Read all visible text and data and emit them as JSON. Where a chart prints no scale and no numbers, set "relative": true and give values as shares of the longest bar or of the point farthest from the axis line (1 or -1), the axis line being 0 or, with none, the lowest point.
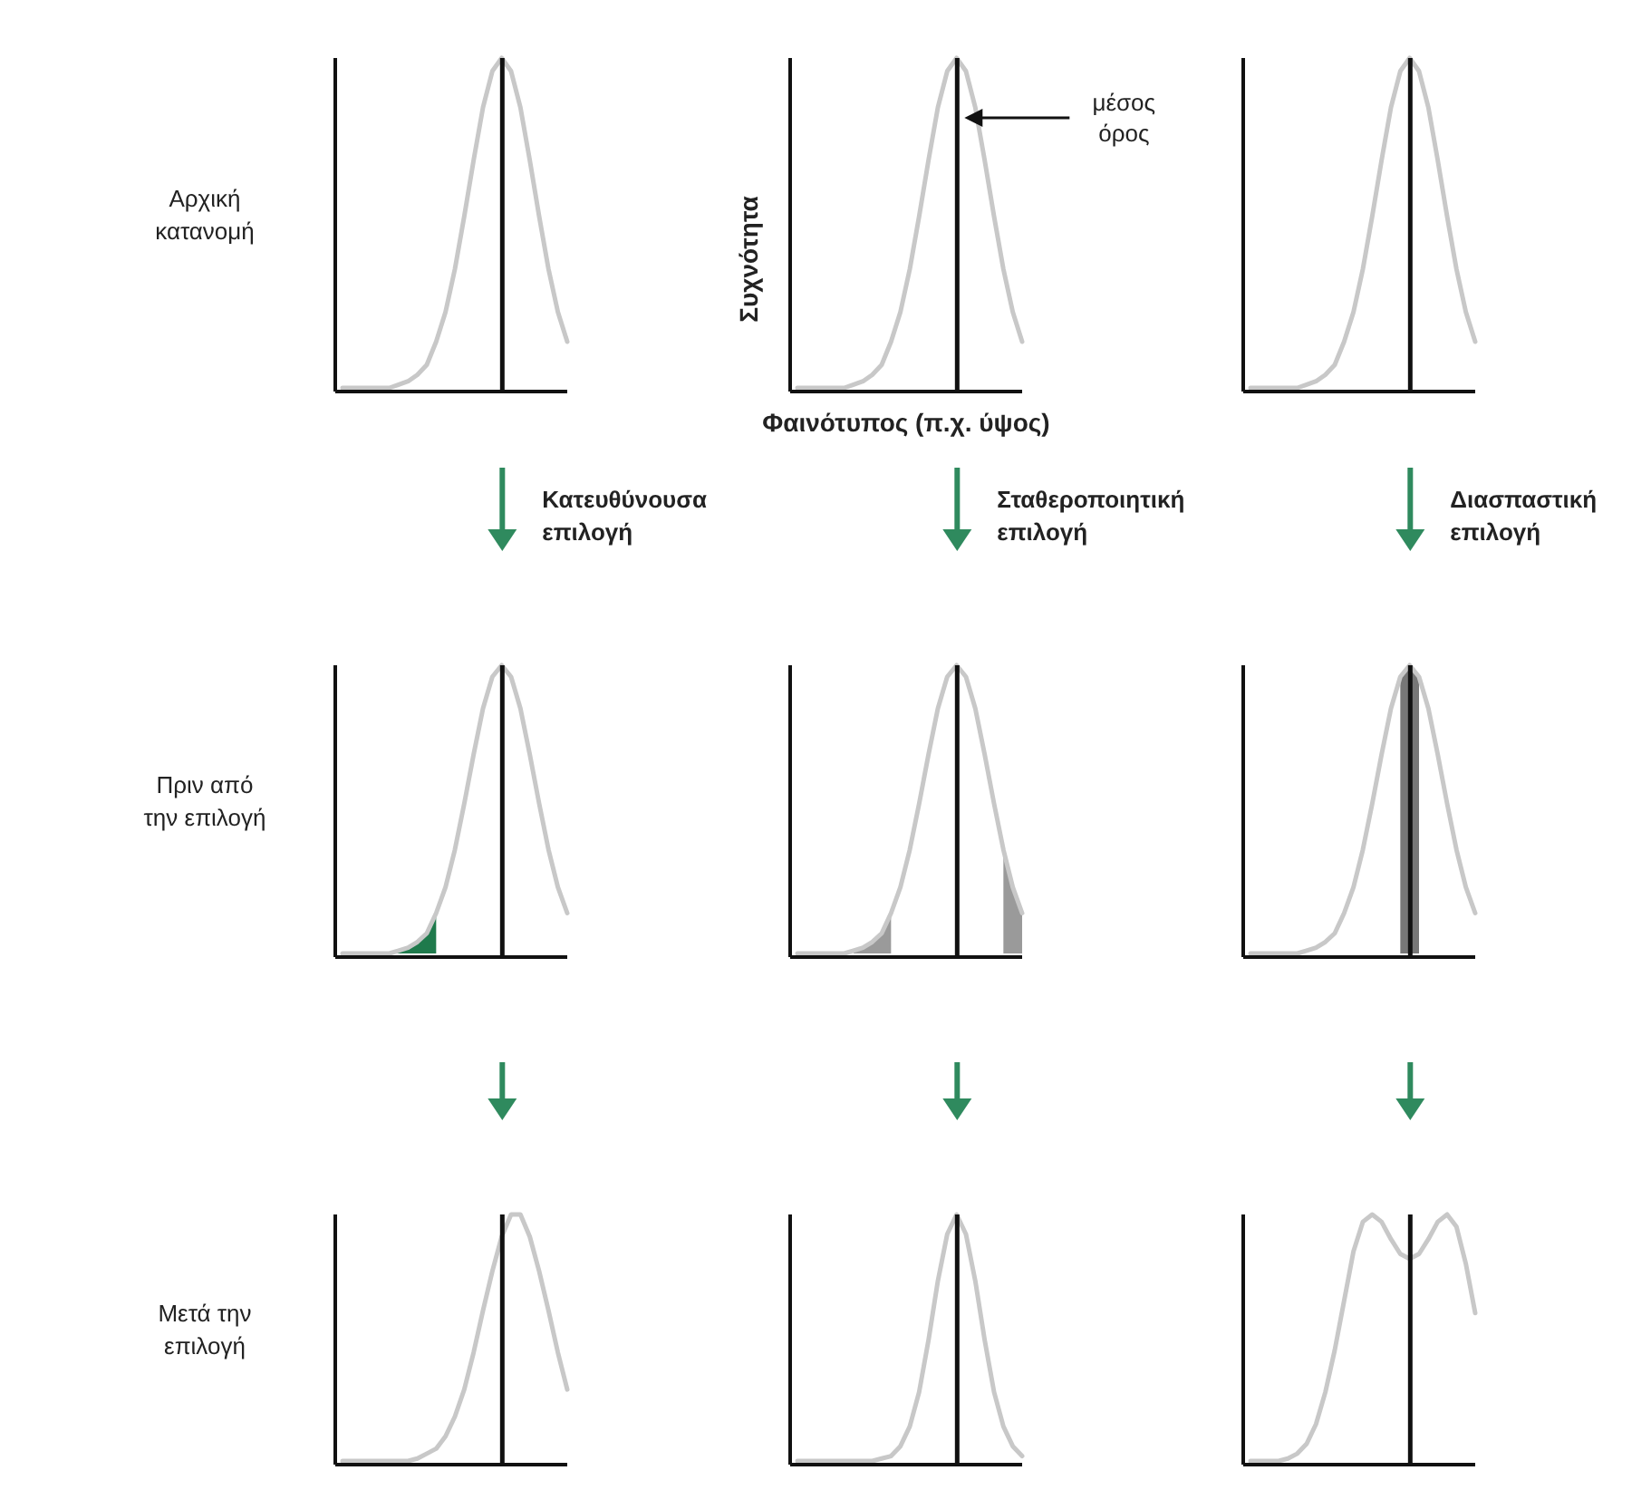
{
  "chart_data": [
    {
      "type": "line",
      "relative": true,
      "categories": [
        null,
        null,
        null,
        null,
        null,
        null,
        null,
        null,
        null,
        null,
        null,
        null,
        null,
        null,
        null,
        null,
        null,
        null,
        null,
        null,
        null,
        null,
        null,
        null,
        null
      ],
      "series": [
        {
          "color": "#c8c8c8",
          "values": [
            0,
            0,
            0,
            0,
            0,
            0,
            0.01,
            0.02,
            0.04,
            0.07,
            0.14,
            0.23,
            0.36,
            0.52,
            0.69,
            0.85,
            0.96,
            1,
            0.96,
            0.85,
            0.69,
            0.52,
            0.36,
            0.23,
            0.14
          ]
        }
      ],
      "annotations": [
        "Αρχική κατανομή"
      ]
    },
    {
      "type": "line",
      "relative": true,
      "categories": [
        null,
        null,
        null,
        null,
        null,
        null,
        null,
        null,
        null,
        null,
        null,
        null,
        null,
        null,
        null,
        null,
        null,
        null,
        null,
        null,
        null,
        null,
        null,
        null,
        null
      ],
      "series": [
        {
          "color": "#c8c8c8",
          "values": [
            0,
            0,
            0,
            0,
            0,
            0,
            0.01,
            0.02,
            0.04,
            0.07,
            0.14,
            0.23,
            0.36,
            0.52,
            0.69,
            0.85,
            0.96,
            1,
            0.96,
            0.85,
            0.69,
            0.52,
            0.36,
            0.23,
            0.14
          ]
        }
      ],
      "xlabel": "Φαινότυπος (π.χ. ύψος)",
      "ylabel": "Συχνότητα",
      "annotations": [
        "μέσος όρος"
      ]
    },
    {
      "type": "line",
      "relative": true,
      "categories": [
        null,
        null,
        null,
        null,
        null,
        null,
        null,
        null,
        null,
        null,
        null,
        null,
        null,
        null,
        null,
        null,
        null,
        null,
        null,
        null,
        null,
        null,
        null,
        null,
        null
      ],
      "series": [
        {
          "color": "#c8c8c8",
          "values": [
            0,
            0,
            0,
            0,
            0,
            0,
            0.01,
            0.02,
            0.04,
            0.07,
            0.14,
            0.23,
            0.36,
            0.52,
            0.69,
            0.85,
            0.96,
            1,
            0.96,
            0.85,
            0.69,
            0.52,
            0.36,
            0.23,
            0.14
          ]
        }
      ]
    },
    {
      "type": "line",
      "relative": true,
      "categories": [
        null,
        null,
        null,
        null,
        null,
        null,
        null,
        null,
        null,
        null,
        null,
        null,
        null,
        null,
        null,
        null,
        null,
        null,
        null,
        null,
        null,
        null,
        null,
        null,
        null
      ],
      "series": [
        {
          "color": "#c8c8c8",
          "values": [
            0,
            0,
            0,
            0,
            0,
            0,
            0.01,
            0.02,
            0.04,
            0.07,
            0.14,
            0.23,
            0.36,
            0.52,
            0.69,
            0.85,
            0.96,
            1,
            0.96,
            0.85,
            0.69,
            0.52,
            0.36,
            0.23,
            0.14
          ]
        },
        {
          "type": "area",
          "color": "#1f7a4c",
          "values": [
            null,
            null,
            null,
            null,
            0,
            0,
            0.01,
            0.02,
            0.04,
            0.07,
            0.14,
            null,
            null,
            null,
            null,
            null,
            null,
            null,
            null,
            null,
            null,
            null,
            null,
            null,
            null
          ]
        }
      ],
      "annotations": [
        "Πριν από την επιλογή",
        "Κατευθύνουσα επιλογή"
      ]
    },
    {
      "type": "line",
      "relative": true,
      "categories": [
        null,
        null,
        null,
        null,
        null,
        null,
        null,
        null,
        null,
        null,
        null,
        null,
        null,
        null,
        null,
        null,
        null,
        null,
        null,
        null,
        null,
        null,
        null,
        null,
        null
      ],
      "series": [
        {
          "color": "#c8c8c8",
          "values": [
            0,
            0,
            0,
            0,
            0,
            0,
            0.01,
            0.02,
            0.04,
            0.07,
            0.14,
            0.23,
            0.36,
            0.52,
            0.69,
            0.85,
            0.96,
            1,
            0.96,
            0.85,
            0.69,
            0.52,
            0.36,
            0.23,
            0.14
          ]
        },
        {
          "type": "area",
          "color": "#9a9a9a",
          "values": [
            null,
            null,
            null,
            null,
            null,
            null,
            0.01,
            0.02,
            0.04,
            0.07,
            0.14,
            null,
            null,
            null,
            null,
            null,
            null,
            null,
            null,
            null,
            null,
            null,
            0.36,
            0.23,
            0.14
          ]
        }
      ],
      "annotations": [
        "Σταθεροποιητική επιλογή"
      ]
    },
    {
      "type": "line",
      "relative": true,
      "categories": [
        null,
        null,
        null,
        null,
        null,
        null,
        null,
        null,
        null,
        null,
        null,
        null,
        null,
        null,
        null,
        null,
        null,
        null,
        null,
        null,
        null,
        null,
        null,
        null,
        null
      ],
      "series": [
        {
          "color": "#c8c8c8",
          "values": [
            0,
            0,
            0,
            0,
            0,
            0,
            0.01,
            0.02,
            0.04,
            0.07,
            0.14,
            0.23,
            0.36,
            0.52,
            0.69,
            0.85,
            0.96,
            1,
            0.96,
            0.85,
            0.69,
            0.52,
            0.36,
            0.23,
            0.14
          ]
        },
        {
          "type": "area",
          "color": "#777777",
          "values": [
            null,
            null,
            null,
            null,
            null,
            null,
            null,
            null,
            null,
            null,
            null,
            null,
            null,
            null,
            null,
            null,
            0.96,
            1,
            0.96,
            null,
            null,
            null,
            null,
            null,
            null
          ]
        }
      ],
      "annotations": [
        "Διασπαστική επιλογή"
      ]
    },
    {
      "type": "line",
      "relative": true,
      "categories": [
        null,
        null,
        null,
        null,
        null,
        null,
        null,
        null,
        null,
        null,
        null,
        null,
        null,
        null,
        null,
        null,
        null,
        null,
        null,
        null,
        null,
        null,
        null,
        null,
        null
      ],
      "series": [
        {
          "color": "#c8c8c8",
          "values": [
            0,
            0,
            0,
            0,
            0,
            0,
            0,
            0,
            0.01,
            0.03,
            0.05,
            0.1,
            0.18,
            0.29,
            0.44,
            0.61,
            0.77,
            0.91,
            1,
            1,
            0.91,
            0.77,
            0.61,
            0.44,
            0.29
          ]
        }
      ],
      "annotations": [
        "Μετά την επιλογή"
      ]
    },
    {
      "type": "line",
      "relative": true,
      "categories": [
        null,
        null,
        null,
        null,
        null,
        null,
        null,
        null,
        null,
        null,
        null,
        null,
        null,
        null,
        null,
        null,
        null,
        null,
        null,
        null,
        null,
        null,
        null,
        null,
        null
      ],
      "series": [
        {
          "color": "#c8c8c8",
          "values": [
            0,
            0,
            0,
            0,
            0,
            0,
            0,
            0,
            0,
            0.01,
            0.02,
            0.06,
            0.14,
            0.28,
            0.49,
            0.73,
            0.92,
            1,
            0.92,
            0.73,
            0.49,
            0.28,
            0.14,
            0.06,
            0.02
          ]
        }
      ]
    },
    {
      "type": "line",
      "relative": true,
      "categories": [
        null,
        null,
        null,
        null,
        null,
        null,
        null,
        null,
        null,
        null,
        null,
        null,
        null,
        null,
        null,
        null,
        null,
        null,
        null,
        null,
        null,
        null,
        null,
        null,
        null
      ],
      "series": [
        {
          "color": "#c8c8c8",
          "values": [
            0,
            0,
            0,
            0,
            0.01,
            0.03,
            0.07,
            0.15,
            0.28,
            0.45,
            0.65,
            0.85,
            0.97,
            1,
            0.97,
            0.9,
            0.84,
            0.82,
            0.84,
            0.9,
            0.97,
            1,
            0.95,
            0.8,
            0.6
          ]
        }
      ]
    }
  ]
}
